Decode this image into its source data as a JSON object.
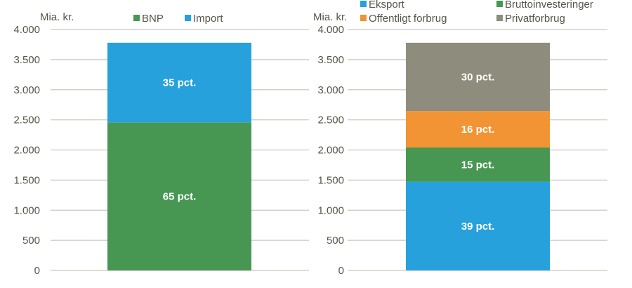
{
  "chart_data": [
    {
      "type": "bar",
      "stacked": true,
      "title": "",
      "ylabel": "Mia. kr.",
      "xlabel": "",
      "ylim": [
        0,
        4000
      ],
      "yticks": [
        0,
        500,
        1000,
        1500,
        2000,
        2500,
        3000,
        3500,
        4000
      ],
      "ytick_labels": [
        "0",
        "500",
        "1.000",
        "1.500",
        "2.000",
        "2.500",
        "3.000",
        "3.500",
        "4.000"
      ],
      "grid": true,
      "legend_position": "top",
      "categories": [
        ""
      ],
      "series": [
        {
          "name": "BNP",
          "color": "#479752",
          "values": [
            2457
          ],
          "label": "65 pct."
        },
        {
          "name": "Import",
          "color": "#27a1dc",
          "values": [
            1323
          ],
          "label": "35 pct."
        }
      ]
    },
    {
      "type": "bar",
      "stacked": true,
      "title": "",
      "ylabel": "Mia. kr.",
      "xlabel": "",
      "ylim": [
        0,
        4000
      ],
      "yticks": [
        0,
        500,
        1000,
        1500,
        2000,
        2500,
        3000,
        3500,
        4000
      ],
      "ytick_labels": [
        "0",
        "500",
        "1.000",
        "1.500",
        "2.000",
        "2.500",
        "3.000",
        "3.500",
        "4.000"
      ],
      "grid": true,
      "legend_position": "top",
      "categories": [
        ""
      ],
      "series": [
        {
          "name": "Eksport",
          "color": "#27a1dc",
          "values": [
            1474
          ],
          "label": "39 pct."
        },
        {
          "name": "Bruttoinvesteringer",
          "color": "#479752",
          "values": [
            567
          ],
          "label": "15 pct."
        },
        {
          "name": "Offentligt forbrug",
          "color": "#f29433",
          "values": [
            605
          ],
          "label": "16 pct."
        },
        {
          "name": "Privatforbrug",
          "color": "#8e8c7d",
          "values": [
            1134
          ],
          "label": "30 pct."
        }
      ]
    }
  ]
}
